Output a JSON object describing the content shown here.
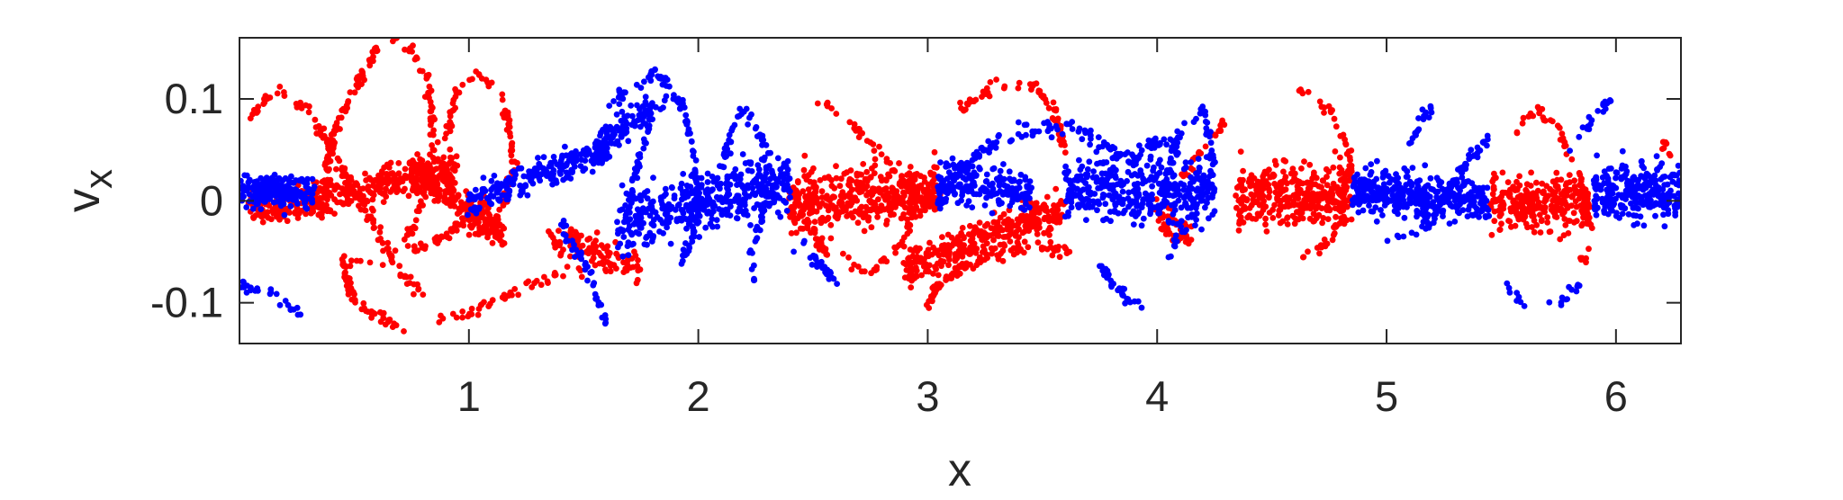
{
  "chart_data": {
    "type": "scatter",
    "xlabel": "x",
    "ylabel": "v",
    "ylabel_subscript": "x",
    "xlim": [
      0,
      6.2832
    ],
    "ylim": [
      -0.14,
      0.16
    ],
    "xticks": [
      1,
      2,
      3,
      4,
      5,
      6
    ],
    "xtick_labels": [
      "1",
      "2",
      "3",
      "4",
      "5",
      "6"
    ],
    "yticks": [
      -0.1,
      0,
      0.1
    ],
    "ytick_labels": [
      "-0.1",
      "0",
      "0.1"
    ],
    "grid": false,
    "series": [
      {
        "color": "#ff0000",
        "segments": [
          {
            "kind": "band",
            "x": [
              0.05,
              0.95
            ],
            "y": [
              -0.01,
              0.03
            ],
            "spread": 0.018,
            "n": 380
          },
          {
            "kind": "band",
            "x": [
              0.75,
              1.15
            ],
            "y": [
              0.03,
              -0.03
            ],
            "spread": 0.018,
            "n": 200
          },
          {
            "kind": "curve",
            "points": [
              [
                0.05,
                0.08
              ],
              [
                0.15,
                0.11
              ],
              [
                0.3,
                0.09
              ],
              [
                0.45,
                0.03
              ],
              [
                0.6,
                -0.03
              ],
              [
                0.7,
                -0.07
              ],
              [
                0.8,
                -0.09
              ]
            ],
            "spread": 0.006,
            "n": 110
          },
          {
            "kind": "curve",
            "points": [
              [
                0.35,
                -0.02
              ],
              [
                0.4,
                0.06
              ],
              [
                0.5,
                0.11
              ],
              [
                0.62,
                0.158
              ],
              [
                0.75,
                0.15
              ],
              [
                0.82,
                0.12
              ],
              [
                0.85,
                0.06
              ],
              [
                0.8,
                0.0
              ],
              [
                0.72,
                -0.04
              ],
              [
                0.65,
                -0.04
              ]
            ],
            "spread": 0.006,
            "n": 160
          },
          {
            "kind": "curve",
            "points": [
              [
                0.9,
                0.06
              ],
              [
                0.95,
                0.11
              ],
              [
                1.05,
                0.125
              ],
              [
                1.15,
                0.1
              ],
              [
                1.2,
                0.03
              ],
              [
                1.12,
                -0.02
              ],
              [
                1.0,
                -0.03
              ]
            ],
            "spread": 0.006,
            "n": 90
          },
          {
            "kind": "curve",
            "points": [
              [
                1.1,
                0.0
              ],
              [
                0.85,
                -0.04
              ],
              [
                0.6,
                -0.06
              ],
              [
                0.45,
                -0.06
              ],
              [
                0.5,
                -0.1
              ],
              [
                0.7,
                -0.125
              ],
              [
                1.0,
                -0.11
              ],
              [
                1.25,
                -0.085
              ],
              [
                1.4,
                -0.07
              ],
              [
                1.7,
                -0.065
              ]
            ],
            "spread": 0.006,
            "n": 180
          },
          {
            "kind": "band",
            "x": [
              1.35,
              1.75
            ],
            "y": [
              -0.035,
              -0.065
            ],
            "spread": 0.015,
            "n": 110
          },
          {
            "kind": "band",
            "x": [
              2.4,
              3.05
            ],
            "y": [
              0.0,
              0.01
            ],
            "spread": 0.03,
            "n": 420
          },
          {
            "kind": "curve",
            "points": [
              [
                2.5,
                0.1
              ],
              [
                2.6,
                0.09
              ],
              [
                2.8,
                0.05
              ],
              [
                2.95,
                0.0
              ],
              [
                2.9,
                -0.04
              ],
              [
                2.75,
                -0.07
              ],
              [
                2.55,
                -0.05
              ],
              [
                2.45,
                -0.01
              ]
            ],
            "spread": 0.006,
            "n": 110
          },
          {
            "kind": "curve",
            "points": [
              [
                3.0,
                -0.1
              ],
              [
                3.05,
                -0.08
              ],
              [
                3.2,
                -0.06
              ],
              [
                3.45,
                -0.045
              ],
              [
                3.65,
                -0.05
              ]
            ],
            "spread": 0.006,
            "n": 90
          },
          {
            "kind": "band",
            "x": [
              2.9,
              3.6
            ],
            "y": [
              -0.065,
              -0.005
            ],
            "spread": 0.018,
            "n": 320
          },
          {
            "kind": "curve",
            "points": [
              [
                3.15,
                0.09
              ],
              [
                3.3,
                0.115
              ],
              [
                3.45,
                0.115
              ],
              [
                3.55,
                0.09
              ],
              [
                3.6,
                0.05
              ]
            ],
            "spread": 0.006,
            "n": 70
          },
          {
            "kind": "band",
            "x": [
              4.0,
              4.15
            ],
            "y": [
              -0.01,
              -0.04
            ],
            "spread": 0.018,
            "n": 60
          },
          {
            "kind": "band",
            "x": [
              4.35,
              4.85
            ],
            "y": [
              0.005,
              0.005
            ],
            "spread": 0.03,
            "n": 340
          },
          {
            "kind": "curve",
            "points": [
              [
                4.6,
                0.11
              ],
              [
                4.75,
                0.09
              ],
              [
                4.85,
                0.04
              ],
              [
                4.8,
                -0.02
              ],
              [
                4.7,
                -0.05
              ],
              [
                4.62,
                -0.06
              ]
            ],
            "spread": 0.006,
            "n": 60
          },
          {
            "kind": "curve",
            "points": [
              [
                4.1,
                0.02
              ],
              [
                4.2,
                0.05
              ],
              [
                4.3,
                0.08
              ]
            ],
            "spread": 0.006,
            "n": 25
          },
          {
            "kind": "band",
            "x": [
              5.45,
              5.88
            ],
            "y": [
              0.0,
              0.0
            ],
            "spread": 0.028,
            "n": 260
          },
          {
            "kind": "curve",
            "points": [
              [
                5.55,
                0.06
              ],
              [
                5.65,
                0.09
              ],
              [
                5.75,
                0.07
              ],
              [
                5.85,
                0.02
              ],
              [
                5.9,
                -0.04
              ],
              [
                5.85,
                -0.06
              ]
            ],
            "spread": 0.006,
            "n": 60
          },
          {
            "kind": "curve",
            "points": [
              [
                6.2,
                0.06
              ],
              [
                6.25,
                0.04
              ]
            ],
            "spread": 0.006,
            "n": 8
          }
        ]
      },
      {
        "color": "#0000ff",
        "segments": [
          {
            "kind": "band",
            "x": [
              0.0,
              0.32
            ],
            "y": [
              0.01,
              0.01
            ],
            "spread": 0.015,
            "n": 200
          },
          {
            "kind": "curve",
            "points": [
              [
                0.0,
                -0.08
              ],
              [
                0.1,
                -0.09
              ],
              [
                0.2,
                -0.1
              ],
              [
                0.28,
                -0.11
              ]
            ],
            "spread": 0.006,
            "n": 25
          },
          {
            "kind": "band",
            "x": [
              1.0,
              1.6
            ],
            "y": [
              0.0,
              0.05
            ],
            "spread": 0.015,
            "n": 220
          },
          {
            "kind": "band",
            "x": [
              1.55,
              1.78
            ],
            "y": [
              0.05,
              0.09
            ],
            "spread": 0.015,
            "n": 90
          },
          {
            "kind": "curve",
            "points": [
              [
                1.6,
                0.09
              ],
              [
                1.7,
                0.11
              ],
              [
                1.82,
                0.125
              ],
              [
                1.92,
                0.1
              ],
              [
                1.98,
                0.05
              ],
              [
                2.0,
                0.0
              ],
              [
                1.98,
                -0.04
              ],
              [
                1.92,
                -0.06
              ]
            ],
            "spread": 0.006,
            "n": 120
          },
          {
            "kind": "curve",
            "points": [
              [
                1.7,
                0.0
              ],
              [
                1.75,
                0.05
              ],
              [
                1.8,
                0.09
              ],
              [
                1.9,
                0.1
              ]
            ],
            "spread": 0.006,
            "n": 50
          },
          {
            "kind": "band",
            "x": [
              1.65,
              2.4
            ],
            "y": [
              -0.02,
              0.02
            ],
            "spread": 0.03,
            "n": 420
          },
          {
            "kind": "curve",
            "points": [
              [
                1.4,
                -0.02
              ],
              [
                1.5,
                -0.06
              ],
              [
                1.55,
                -0.09
              ],
              [
                1.6,
                -0.12
              ]
            ],
            "spread": 0.008,
            "n": 40
          },
          {
            "kind": "curve",
            "points": [
              [
                2.1,
                0.03
              ],
              [
                2.15,
                0.07
              ],
              [
                2.2,
                0.09
              ],
              [
                2.3,
                0.05
              ],
              [
                2.28,
                -0.02
              ],
              [
                2.22,
                -0.05
              ],
              [
                2.25,
                -0.08
              ]
            ],
            "spread": 0.006,
            "n": 80
          },
          {
            "kind": "curve",
            "points": [
              [
                2.4,
                -0.05
              ],
              [
                2.5,
                -0.06
              ],
              [
                2.6,
                -0.08
              ],
              [
                2.45,
                -0.04
              ]
            ],
            "spread": 0.006,
            "n": 30
          },
          {
            "kind": "band",
            "x": [
              3.05,
              3.45
            ],
            "y": [
              0.02,
              0.01
            ],
            "spread": 0.02,
            "n": 180
          },
          {
            "kind": "curve",
            "points": [
              [
                3.05,
                0.0
              ],
              [
                3.15,
                0.03
              ],
              [
                3.3,
                0.06
              ],
              [
                3.45,
                0.07
              ],
              [
                3.6,
                0.075
              ],
              [
                3.75,
                0.06
              ],
              [
                3.85,
                0.04
              ],
              [
                4.0,
                0.06
              ],
              [
                4.1,
                0.05
              ]
            ],
            "spread": 0.008,
            "n": 160
          },
          {
            "kind": "band",
            "x": [
              3.6,
              4.25
            ],
            "y": [
              0.01,
              0.01
            ],
            "spread": 0.03,
            "n": 360
          },
          {
            "kind": "curve",
            "points": [
              [
                3.75,
                -0.06
              ],
              [
                3.8,
                -0.08
              ],
              [
                3.88,
                -0.1
              ],
              [
                3.92,
                -0.1
              ]
            ],
            "spread": 0.006,
            "n": 30
          },
          {
            "kind": "curve",
            "points": [
              [
                4.0,
                -0.02
              ],
              [
                4.05,
                0.03
              ],
              [
                4.1,
                0.07
              ],
              [
                4.2,
                0.09
              ],
              [
                4.25,
                0.04
              ],
              [
                4.2,
                0.0
              ],
              [
                4.1,
                -0.03
              ],
              [
                4.05,
                -0.06
              ]
            ],
            "spread": 0.006,
            "n": 80
          },
          {
            "kind": "band",
            "x": [
              4.85,
              5.45
            ],
            "y": [
              0.01,
              0.0
            ],
            "spread": 0.022,
            "n": 360
          },
          {
            "kind": "curve",
            "points": [
              [
                5.0,
                -0.04
              ],
              [
                5.15,
                -0.03
              ],
              [
                5.25,
                0.0
              ],
              [
                5.35,
                0.04
              ],
              [
                5.45,
                0.06
              ]
            ],
            "spread": 0.006,
            "n": 60
          },
          {
            "kind": "curve",
            "points": [
              [
                5.1,
                0.05
              ],
              [
                5.15,
                0.08
              ],
              [
                5.2,
                0.09
              ]
            ],
            "spread": 0.006,
            "n": 20
          },
          {
            "kind": "band",
            "x": [
              5.9,
              6.28
            ],
            "y": [
              0.01,
              0.01
            ],
            "spread": 0.028,
            "n": 260
          },
          {
            "kind": "curve",
            "points": [
              [
                5.8,
                0.05
              ],
              [
                5.9,
                0.08
              ],
              [
                5.98,
                0.1
              ]
            ],
            "spread": 0.006,
            "n": 20
          },
          {
            "kind": "curve",
            "points": [
              [
                5.5,
                -0.08
              ],
              [
                5.6,
                -0.1
              ],
              [
                5.75,
                -0.1
              ],
              [
                5.85,
                -0.08
              ]
            ],
            "spread": 0.006,
            "n": 20
          }
        ]
      }
    ]
  }
}
